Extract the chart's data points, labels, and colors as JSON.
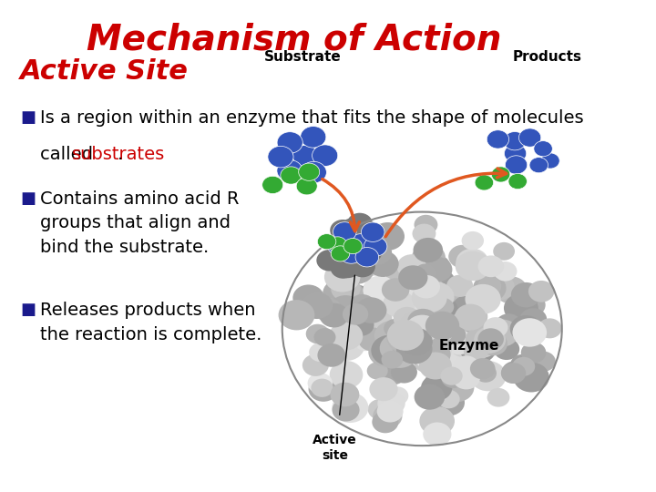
{
  "title": "Mechanism of Action",
  "title_color": "#cc0000",
  "title_fontsize": 28,
  "subtitle": "Active Site",
  "subtitle_color": "#cc0000",
  "subtitle_fontsize": 22,
  "bullet_color": "#1a1a8c",
  "bullet_char": "■",
  "bullet_fontsize": 14,
  "background_color": "#ffffff",
  "line1_b1": "Is a region within an enzyme that fits the shape of molecules",
  "line2_b1_pre": "called ",
  "line2_b1_red": "substrates",
  "line2_b1_post": ".",
  "bullet2_text": "Contains amino acid R\ngroups that align and\nbind the substrate.",
  "bullet3_text": "Releases products when\nthe reaction is complete.",
  "label_substrate": "Substrate",
  "label_products": "Products",
  "label_enzyme": "Enzyme",
  "label_active": "Active\nsite",
  "arrow_color": "#e05820",
  "blue_color": "#3355bb",
  "green_color": "#33aa33"
}
